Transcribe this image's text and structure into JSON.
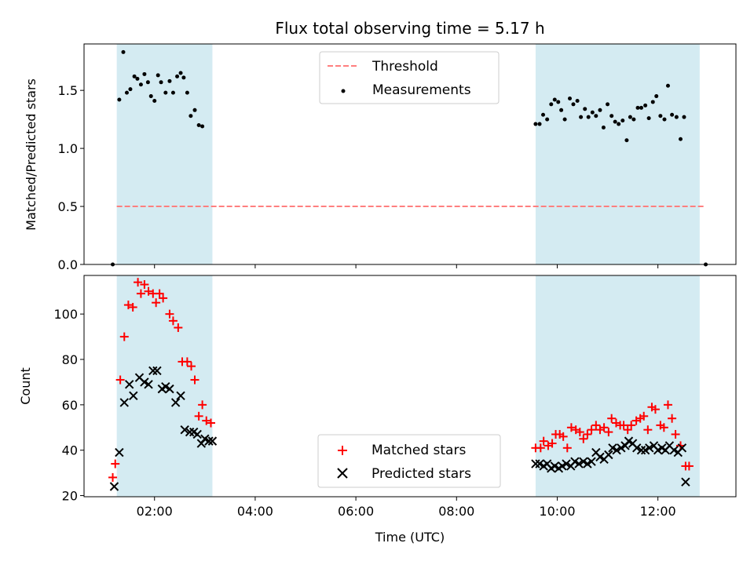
{
  "chart_data": [
    {
      "type": "scatter",
      "title": "Flux total observing time = 5.17 h",
      "xlabel": "",
      "ylabel": "Matched/Predicted stars",
      "xlim": [
        0.6,
        13.55
      ],
      "ylim": [
        0,
        1.9
      ],
      "yticks": [
        0.0,
        0.5,
        1.0,
        1.5
      ],
      "ytick_labels": [
        "0.0",
        "0.5",
        "1.0",
        "1.5"
      ],
      "shaded_intervals": [
        [
          1.25,
          3.15
        ],
        [
          9.57,
          12.83
        ]
      ],
      "shade_color": "#add8e6",
      "legend_position": "top-center",
      "legend": [
        "Threshold",
        "Measurements"
      ],
      "series": [
        {
          "name": "Threshold",
          "style": "dashed-line",
          "color": "#ff7f7f",
          "points": [
            [
              1.25,
              0.5
            ],
            [
              12.95,
              0.5
            ]
          ]
        },
        {
          "name": "Measurements",
          "style": "dot",
          "color": "#000000",
          "points": [
            [
              1.17,
              0.0
            ],
            [
              1.3,
              1.42
            ],
            [
              1.38,
              1.83
            ],
            [
              1.45,
              1.48
            ],
            [
              1.52,
              1.51
            ],
            [
              1.6,
              1.62
            ],
            [
              1.66,
              1.6
            ],
            [
              1.73,
              1.55
            ],
            [
              1.8,
              1.64
            ],
            [
              1.87,
              1.57
            ],
            [
              1.93,
              1.45
            ],
            [
              2.0,
              1.41
            ],
            [
              2.07,
              1.63
            ],
            [
              2.13,
              1.57
            ],
            [
              2.22,
              1.48
            ],
            [
              2.3,
              1.58
            ],
            [
              2.37,
              1.48
            ],
            [
              2.45,
              1.62
            ],
            [
              2.52,
              1.65
            ],
            [
              2.58,
              1.61
            ],
            [
              2.65,
              1.48
            ],
            [
              2.72,
              1.28
            ],
            [
              2.8,
              1.33
            ],
            [
              2.88,
              1.2
            ],
            [
              2.95,
              1.19
            ],
            [
              9.57,
              1.21
            ],
            [
              9.65,
              1.21
            ],
            [
              9.72,
              1.29
            ],
            [
              9.8,
              1.25
            ],
            [
              9.88,
              1.38
            ],
            [
              9.95,
              1.42
            ],
            [
              10.02,
              1.4
            ],
            [
              10.08,
              1.33
            ],
            [
              10.15,
              1.25
            ],
            [
              10.25,
              1.43
            ],
            [
              10.32,
              1.38
            ],
            [
              10.4,
              1.41
            ],
            [
              10.47,
              1.27
            ],
            [
              10.55,
              1.34
            ],
            [
              10.62,
              1.27
            ],
            [
              10.7,
              1.31
            ],
            [
              10.77,
              1.28
            ],
            [
              10.85,
              1.33
            ],
            [
              10.92,
              1.18
            ],
            [
              11.0,
              1.38
            ],
            [
              11.08,
              1.28
            ],
            [
              11.15,
              1.23
            ],
            [
              11.22,
              1.21
            ],
            [
              11.3,
              1.24
            ],
            [
              11.38,
              1.07
            ],
            [
              11.45,
              1.27
            ],
            [
              11.52,
              1.25
            ],
            [
              11.6,
              1.35
            ],
            [
              11.67,
              1.35
            ],
            [
              11.75,
              1.37
            ],
            [
              11.82,
              1.26
            ],
            [
              11.9,
              1.4
            ],
            [
              11.97,
              1.45
            ],
            [
              12.05,
              1.28
            ],
            [
              12.13,
              1.25
            ],
            [
              12.2,
              1.54
            ],
            [
              12.28,
              1.29
            ],
            [
              12.37,
              1.27
            ],
            [
              12.45,
              1.08
            ],
            [
              12.52,
              1.27
            ],
            [
              12.95,
              0.0
            ]
          ]
        }
      ]
    },
    {
      "type": "scatter",
      "title": "",
      "xlabel": "Time (UTC)",
      "ylabel": "Count",
      "xlim": [
        0.6,
        13.55
      ],
      "ylim": [
        19.5,
        117
      ],
      "yticks": [
        20,
        40,
        60,
        80,
        100
      ],
      "ytick_labels": [
        "20",
        "40",
        "60",
        "80",
        "100"
      ],
      "xticks": [
        2,
        4,
        6,
        8,
        10,
        12
      ],
      "xtick_labels": [
        "02:00",
        "04:00",
        "06:00",
        "08:00",
        "10:00",
        "12:00"
      ],
      "shaded_intervals": [
        [
          1.25,
          3.15
        ],
        [
          9.57,
          12.83
        ]
      ],
      "shade_color": "#add8e6",
      "legend_position": "bottom-center",
      "legend": [
        "Matched stars",
        "Predicted stars"
      ],
      "series": [
        {
          "name": "Matched stars",
          "marker": "plus",
          "color": "#ff0000",
          "points": [
            [
              1.17,
              28
            ],
            [
              1.22,
              34
            ],
            [
              1.32,
              71
            ],
            [
              1.4,
              90
            ],
            [
              1.48,
              104
            ],
            [
              1.57,
              103
            ],
            [
              1.67,
              114
            ],
            [
              1.73,
              109
            ],
            [
              1.8,
              113
            ],
            [
              1.88,
              110
            ],
            [
              1.97,
              109
            ],
            [
              2.03,
              105
            ],
            [
              2.1,
              109
            ],
            [
              2.17,
              107
            ],
            [
              2.3,
              100
            ],
            [
              2.37,
              97
            ],
            [
              2.47,
              94
            ],
            [
              2.55,
              79
            ],
            [
              2.65,
              79
            ],
            [
              2.73,
              77
            ],
            [
              2.8,
              71
            ],
            [
              2.88,
              55
            ],
            [
              2.95,
              60
            ],
            [
              3.03,
              53
            ],
            [
              3.12,
              52
            ],
            [
              9.57,
              41
            ],
            [
              9.67,
              41
            ],
            [
              9.73,
              44
            ],
            [
              9.82,
              42
            ],
            [
              9.9,
              43
            ],
            [
              9.97,
              47
            ],
            [
              10.05,
              47
            ],
            [
              10.12,
              46
            ],
            [
              10.2,
              41
            ],
            [
              10.28,
              50
            ],
            [
              10.37,
              49
            ],
            [
              10.45,
              48
            ],
            [
              10.52,
              45
            ],
            [
              10.6,
              47
            ],
            [
              10.68,
              49
            ],
            [
              10.77,
              51
            ],
            [
              10.85,
              49
            ],
            [
              10.93,
              50
            ],
            [
              11.02,
              48
            ],
            [
              11.08,
              54
            ],
            [
              11.17,
              52
            ],
            [
              11.25,
              51
            ],
            [
              11.32,
              51
            ],
            [
              11.4,
              49
            ],
            [
              11.47,
              51
            ],
            [
              11.57,
              53
            ],
            [
              11.65,
              54
            ],
            [
              11.72,
              55
            ],
            [
              11.8,
              49
            ],
            [
              11.88,
              59
            ],
            [
              11.95,
              58
            ],
            [
              12.05,
              51
            ],
            [
              12.12,
              50
            ],
            [
              12.2,
              60
            ],
            [
              12.28,
              54
            ],
            [
              12.35,
              47
            ],
            [
              12.45,
              42
            ],
            [
              12.55,
              33
            ],
            [
              12.62,
              33
            ]
          ]
        },
        {
          "name": "Predicted stars",
          "marker": "x",
          "color": "#000000",
          "points": [
            [
              1.2,
              24
            ],
            [
              1.3,
              39
            ],
            [
              1.4,
              61
            ],
            [
              1.5,
              69
            ],
            [
              1.58,
              64
            ],
            [
              1.7,
              72
            ],
            [
              1.8,
              70
            ],
            [
              1.88,
              69
            ],
            [
              1.97,
              75
            ],
            [
              2.05,
              75
            ],
            [
              2.15,
              67
            ],
            [
              2.22,
              68
            ],
            [
              2.3,
              67
            ],
            [
              2.42,
              61
            ],
            [
              2.52,
              64
            ],
            [
              2.6,
              49
            ],
            [
              2.7,
              48
            ],
            [
              2.78,
              48
            ],
            [
              2.85,
              47
            ],
            [
              2.93,
              43
            ],
            [
              3.0,
              45
            ],
            [
              3.08,
              44
            ],
            [
              3.15,
              44
            ],
            [
              9.57,
              34
            ],
            [
              9.65,
              34
            ],
            [
              9.73,
              33
            ],
            [
              9.8,
              34
            ],
            [
              9.88,
              32
            ],
            [
              9.95,
              33
            ],
            [
              10.03,
              32
            ],
            [
              10.1,
              33
            ],
            [
              10.18,
              34
            ],
            [
              10.27,
              33
            ],
            [
              10.35,
              35
            ],
            [
              10.43,
              34
            ],
            [
              10.52,
              35
            ],
            [
              10.6,
              34
            ],
            [
              10.68,
              35
            ],
            [
              10.77,
              39
            ],
            [
              10.85,
              37
            ],
            [
              10.93,
              36
            ],
            [
              11.02,
              38
            ],
            [
              11.1,
              41
            ],
            [
              11.18,
              40
            ],
            [
              11.27,
              41
            ],
            [
              11.35,
              42
            ],
            [
              11.42,
              44
            ],
            [
              11.5,
              43
            ],
            [
              11.58,
              41
            ],
            [
              11.67,
              40
            ],
            [
              11.75,
              40
            ],
            [
              11.83,
              41
            ],
            [
              11.92,
              42
            ],
            [
              12.0,
              40
            ],
            [
              12.08,
              41
            ],
            [
              12.15,
              40
            ],
            [
              12.23,
              42
            ],
            [
              12.32,
              40
            ],
            [
              12.4,
              39
            ],
            [
              12.48,
              41
            ],
            [
              12.55,
              26
            ]
          ]
        }
      ]
    }
  ]
}
